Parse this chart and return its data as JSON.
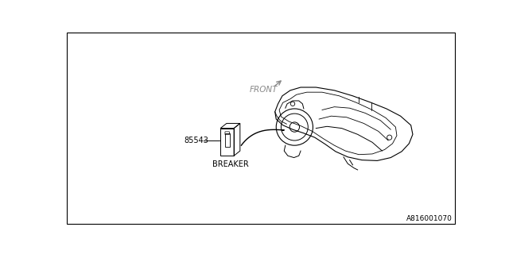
{
  "bg_color": "#ffffff",
  "line_color": "#000000",
  "text_color": "#000000",
  "part_number": "85543",
  "label_breaker": "BREAKER",
  "label_front": "FRONT",
  "diagram_id": "A816001070",
  "fig_width": 6.4,
  "fig_height": 3.2,
  "dpi": 100
}
